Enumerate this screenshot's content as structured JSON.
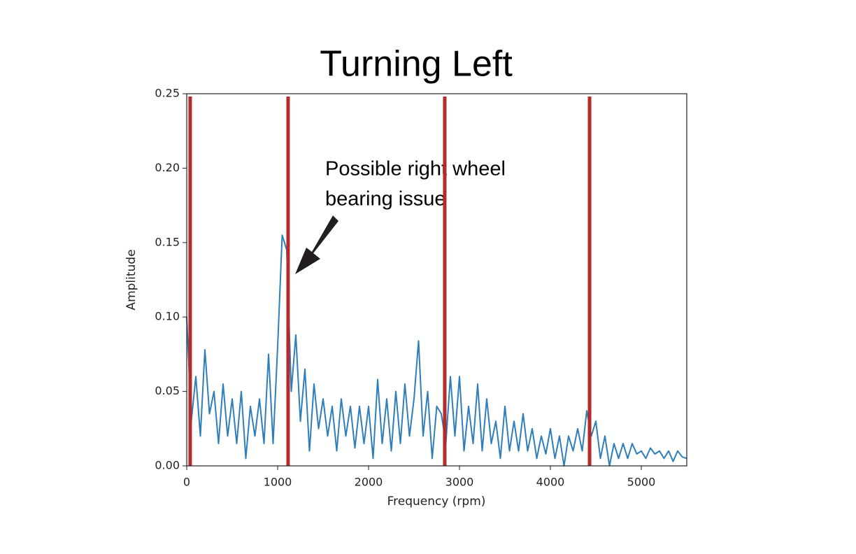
{
  "chart_data": {
    "type": "line",
    "title": "Turning Left",
    "xlabel": "Frequency (rpm)",
    "ylabel": "Amplitude",
    "xlim": [
      0,
      5500
    ],
    "ylim": [
      0,
      0.25
    ],
    "xticks": [
      0,
      1000,
      2000,
      3000,
      4000,
      5000
    ],
    "yticks": [
      {
        "value": 0,
        "label": "0.00"
      },
      {
        "value": 0.05,
        "label": "0.05"
      },
      {
        "value": 0.1,
        "label": "0.10"
      },
      {
        "value": 0.15,
        "label": "0.15"
      },
      {
        "value": 0.2,
        "label": "0.20"
      },
      {
        "value": 0.25,
        "label": "0.25"
      }
    ],
    "color": "#2e7ebc",
    "x": [
      0,
      50,
      100,
      150,
      200,
      250,
      300,
      350,
      400,
      450,
      500,
      550,
      600,
      650,
      700,
      750,
      800,
      850,
      900,
      950,
      1000,
      1050,
      1100,
      1150,
      1200,
      1250,
      1300,
      1350,
      1400,
      1450,
      1500,
      1550,
      1600,
      1650,
      1700,
      1750,
      1800,
      1850,
      1900,
      1950,
      2000,
      2050,
      2100,
      2150,
      2200,
      2250,
      2300,
      2350,
      2400,
      2450,
      2500,
      2550,
      2600,
      2650,
      2700,
      2750,
      2800,
      2850,
      2900,
      2950,
      3000,
      3050,
      3100,
      3150,
      3200,
      3250,
      3300,
      3350,
      3400,
      3450,
      3500,
      3550,
      3600,
      3650,
      3700,
      3750,
      3800,
      3850,
      3900,
      3950,
      4000,
      4050,
      4100,
      4150,
      4200,
      4250,
      4300,
      4350,
      4400,
      4450,
      4500,
      4550,
      4600,
      4650,
      4700,
      4750,
      4800,
      4850,
      4900,
      4950,
      5000,
      5050,
      5100,
      5150,
      5200,
      5250,
      5300,
      5350,
      5400,
      5450,
      5500
    ],
    "values": [
      0.1,
      0.03,
      0.06,
      0.02,
      0.078,
      0.035,
      0.05,
      0.015,
      0.055,
      0.02,
      0.045,
      0.015,
      0.05,
      0.005,
      0.04,
      0.02,
      0.045,
      0.015,
      0.075,
      0.015,
      0.08,
      0.155,
      0.145,
      0.05,
      0.088,
      0.03,
      0.065,
      0.01,
      0.055,
      0.025,
      0.045,
      0.02,
      0.04,
      0.01,
      0.045,
      0.02,
      0.04,
      0.012,
      0.04,
      0.015,
      0.04,
      0.005,
      0.058,
      0.015,
      0.045,
      0.01,
      0.05,
      0.015,
      0.055,
      0.02,
      0.045,
      0.084,
      0.02,
      0.05,
      0.005,
      0.04,
      0.035,
      0.015,
      0.06,
      0.02,
      0.06,
      0.01,
      0.04,
      0.015,
      0.055,
      0.01,
      0.045,
      0.015,
      0.03,
      0.005,
      0.04,
      0.01,
      0.03,
      0.01,
      0.035,
      0.01,
      0.025,
      0.005,
      0.02,
      0.008,
      0.025,
      0.005,
      0.02,
      0.0,
      0.02,
      0.01,
      0.025,
      0.01,
      0.037,
      0.02,
      0.03,
      0.005,
      0.02,
      0.0,
      0.015,
      0.005,
      0.015,
      0.005,
      0.015,
      0.008,
      0.01,
      0.005,
      0.012,
      0.008,
      0.01,
      0.005,
      0.01,
      0.003,
      0.01,
      0.006,
      0.005
    ],
    "vlines": {
      "x": [
        38,
        1115,
        2838,
        4431
      ],
      "color": "#b52a2a"
    },
    "annotation": [
      "Possible right wheel",
      "bearing issue"
    ]
  }
}
